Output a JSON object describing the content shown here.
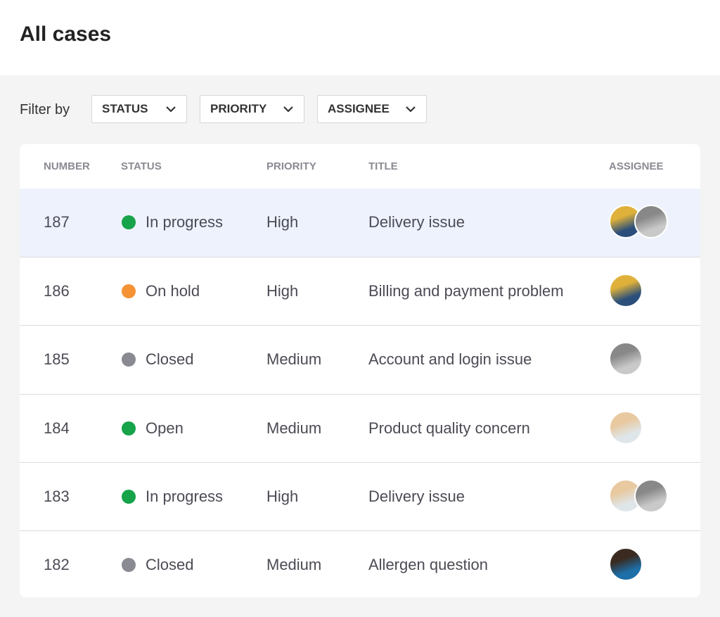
{
  "header": {
    "title": "All cases"
  },
  "filters": {
    "label": "Filter by",
    "buttons": [
      "STATUS",
      "PRIORITY",
      "ASSIGNEE"
    ]
  },
  "table": {
    "columns": [
      "NUMBER",
      "STATUS",
      "PRIORITY",
      "TITLE",
      "ASSIGNEE"
    ],
    "rows": [
      [
        187,
        "In progress",
        "High",
        "Delivery issue"
      ],
      [
        186,
        "On hold",
        "High",
        "Billing and payment problem"
      ],
      [
        185,
        "Closed",
        "Medium",
        "Account and login issue"
      ],
      [
        184,
        "Open",
        "Medium",
        "Product quality concern"
      ],
      [
        183,
        "In progress",
        "High",
        "Delivery issue"
      ],
      [
        182,
        "Closed",
        "Medium",
        "Allergen question"
      ]
    ]
  }
}
